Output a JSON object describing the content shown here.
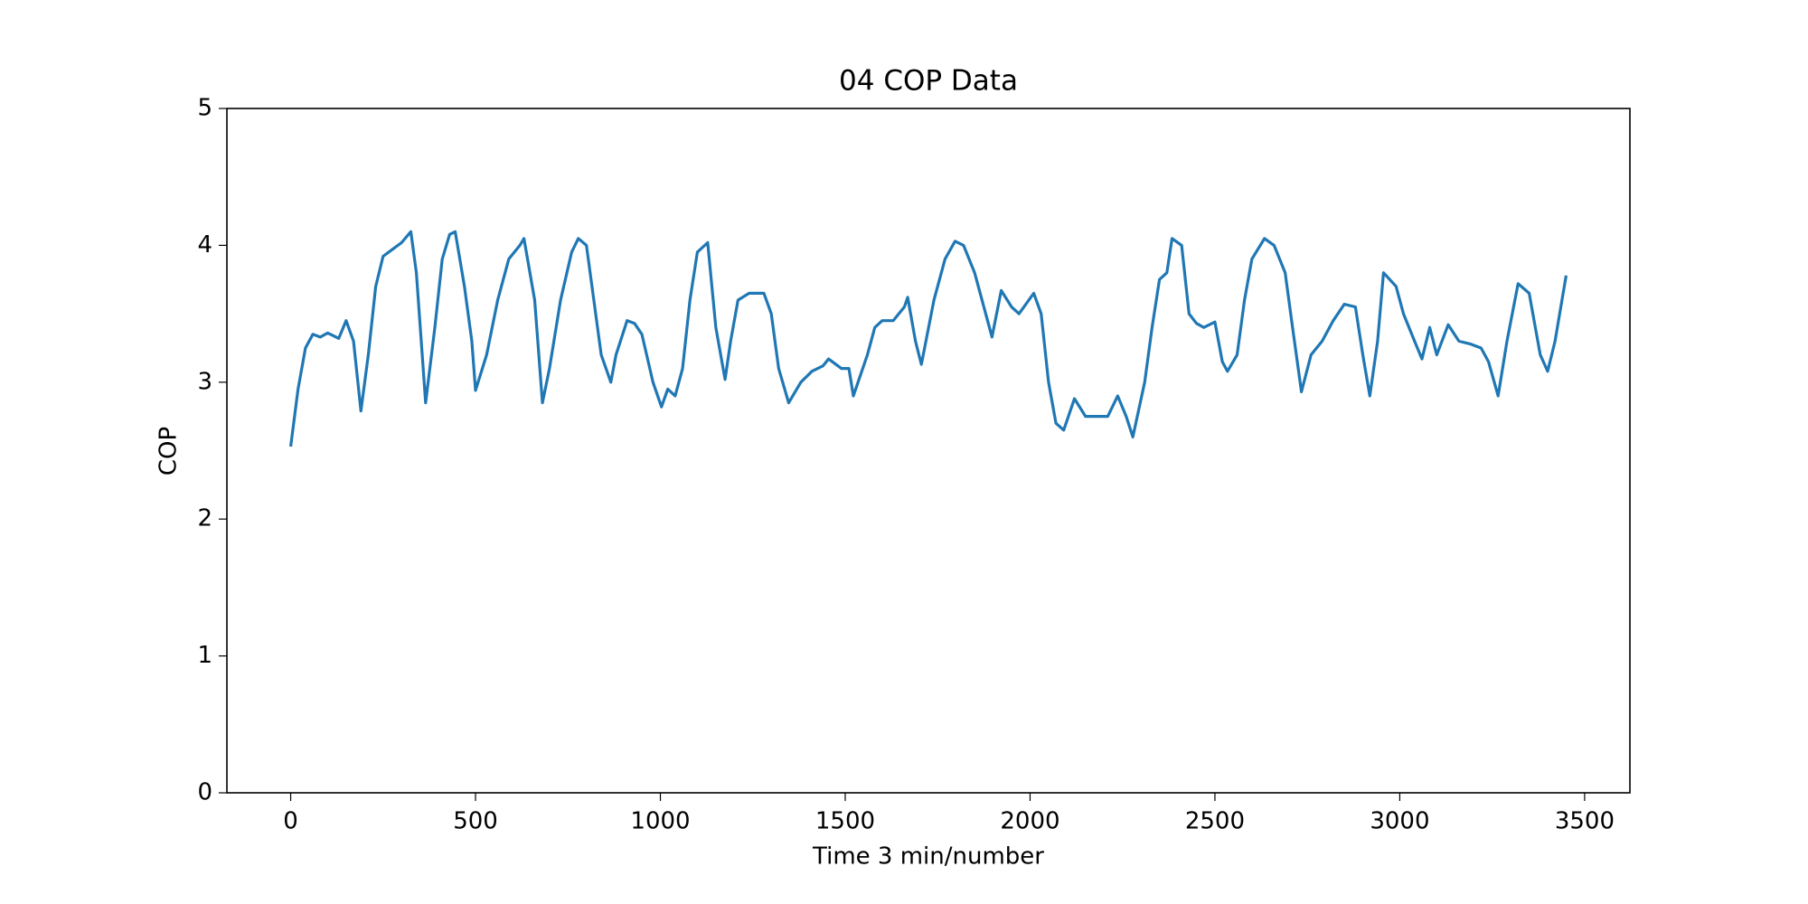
{
  "chart_data": {
    "type": "line",
    "title": "04 COP Data",
    "x_label": "Time 3 min/number",
    "y_label": "COP",
    "x": [
      0,
      20,
      40,
      60,
      80,
      100,
      130,
      150,
      170,
      190,
      210,
      230,
      250,
      280,
      300,
      325,
      340,
      365,
      390,
      410,
      430,
      445,
      470,
      490,
      500,
      530,
      560,
      590,
      620,
      631,
      660,
      681,
      700,
      730,
      760,
      778,
      800,
      820,
      840,
      866,
      880,
      910,
      930,
      950,
      980,
      1003,
      1020,
      1040,
      1060,
      1080,
      1100,
      1128,
      1150,
      1175,
      1190,
      1210,
      1240,
      1280,
      1300,
      1320,
      1347,
      1380,
      1410,
      1440,
      1455,
      1490,
      1510,
      1522,
      1560,
      1580,
      1600,
      1630,
      1660,
      1669,
      1690,
      1706,
      1740,
      1770,
      1797,
      1820,
      1850,
      1880,
      1897,
      1922,
      1950,
      1970,
      2010,
      2030,
      2050,
      2070,
      2091,
      2120,
      2150,
      2180,
      2210,
      2237,
      2260,
      2278,
      2310,
      2330,
      2350,
      2370,
      2384,
      2410,
      2430,
      2450,
      2470,
      2500,
      2520,
      2534,
      2560,
      2580,
      2600,
      2634,
      2660,
      2690,
      2710,
      2734,
      2760,
      2790,
      2820,
      2850,
      2880,
      2900,
      2919,
      2940,
      2956,
      2990,
      3010,
      3040,
      3060,
      3081,
      3100,
      3131,
      3160,
      3190,
      3220,
      3240,
      3266,
      3290,
      3320,
      3350,
      3380,
      3400,
      3420,
      3450
    ],
    "values": [
      2.53,
      2.95,
      3.25,
      3.35,
      3.33,
      3.36,
      3.32,
      3.45,
      3.3,
      2.79,
      3.2,
      3.7,
      3.92,
      3.98,
      4.02,
      4.1,
      3.8,
      2.85,
      3.4,
      3.9,
      4.08,
      4.1,
      3.7,
      3.3,
      2.94,
      3.2,
      3.6,
      3.9,
      4.0,
      4.05,
      3.6,
      2.85,
      3.1,
      3.6,
      3.95,
      4.05,
      4.0,
      3.6,
      3.2,
      3.0,
      3.2,
      3.45,
      3.43,
      3.35,
      3.0,
      2.82,
      2.95,
      2.9,
      3.1,
      3.6,
      3.95,
      4.02,
      3.4,
      3.02,
      3.3,
      3.6,
      3.65,
      3.65,
      3.5,
      3.1,
      2.85,
      3.0,
      3.08,
      3.12,
      3.17,
      3.1,
      3.1,
      2.9,
      3.2,
      3.4,
      3.45,
      3.45,
      3.55,
      3.62,
      3.3,
      3.13,
      3.6,
      3.9,
      4.03,
      4.0,
      3.8,
      3.5,
      3.33,
      3.67,
      3.55,
      3.5,
      3.65,
      3.5,
      3.0,
      2.7,
      2.65,
      2.88,
      2.75,
      2.75,
      2.75,
      2.9,
      2.75,
      2.6,
      3.0,
      3.4,
      3.75,
      3.8,
      4.05,
      4.0,
      3.5,
      3.43,
      3.4,
      3.44,
      3.15,
      3.08,
      3.2,
      3.6,
      3.9,
      4.05,
      4.0,
      3.8,
      3.4,
      2.93,
      3.2,
      3.3,
      3.45,
      3.57,
      3.55,
      3.2,
      2.9,
      3.3,
      3.8,
      3.7,
      3.5,
      3.3,
      3.17,
      3.4,
      3.2,
      3.42,
      3.3,
      3.28,
      3.25,
      3.15,
      2.9,
      3.3,
      3.72,
      3.65,
      3.2,
      3.08,
      3.3,
      3.78
    ],
    "color": "#1f77b4",
    "xlim": [
      -172.5,
      3622.5
    ],
    "xticks": [
      0,
      500,
      1000,
      1500,
      2000,
      2500,
      3000,
      3500
    ],
    "ylim": [
      0,
      5
    ],
    "yticks": [
      0,
      1,
      2,
      3,
      4,
      5
    ]
  }
}
